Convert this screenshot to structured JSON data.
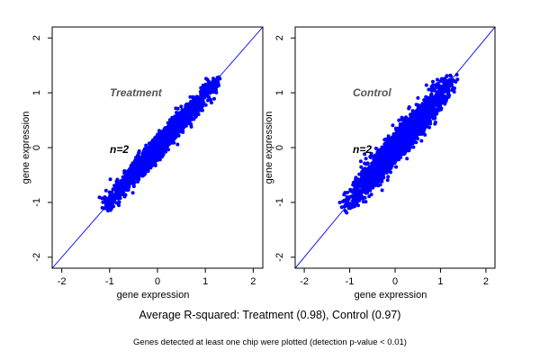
{
  "chart_data": [
    {
      "type": "scatter",
      "panel": "left",
      "annotation": "Treatment",
      "n_label": "n=2",
      "xlabel": "gene expression",
      "ylabel": "gene expression",
      "xlim": [
        -2.2,
        2.2
      ],
      "ylim": [
        -2.2,
        2.2
      ],
      "xticks": [
        -2,
        -1,
        0,
        1,
        2
      ],
      "yticks": [
        -2,
        -1,
        0,
        1,
        2
      ],
      "reference_line": {
        "slope": 1,
        "intercept": 0
      },
      "point_color": "#0000ff",
      "line_color": "#0000ff",
      "cloud": {
        "x_range": [
          -1.05,
          1.2
        ],
        "slope": 0.98,
        "spread": 0.07
      },
      "series": [
        {
          "name": "",
          "points": [
            [
              -1.0,
              -1.05
            ],
            [
              -0.8,
              -0.9
            ],
            [
              -0.5,
              -0.55
            ],
            [
              -0.2,
              -0.2
            ],
            [
              0.0,
              0.0
            ],
            [
              0.3,
              0.28
            ],
            [
              0.6,
              0.55
            ],
            [
              0.9,
              0.9
            ],
            [
              1.1,
              1.15
            ],
            [
              1.15,
              1.2
            ]
          ]
        }
      ]
    },
    {
      "type": "scatter",
      "panel": "right",
      "annotation": "Control",
      "n_label": "n=2",
      "xlabel": "gene expression",
      "ylabel": "gene expression",
      "xlim": [
        -2.2,
        2.2
      ],
      "ylim": [
        -2.2,
        2.2
      ],
      "xticks": [
        -2,
        -1,
        0,
        1,
        2
      ],
      "yticks": [
        -2,
        -1,
        0,
        1,
        2
      ],
      "reference_line": {
        "slope": 1,
        "intercept": 0
      },
      "point_color": "#0000ff",
      "line_color": "#0000ff",
      "cloud": {
        "x_range": [
          -1.05,
          1.2
        ],
        "slope": 0.97,
        "spread": 0.1
      },
      "series": [
        {
          "name": "",
          "points": [
            [
              -1.0,
              -1.1
            ],
            [
              -0.8,
              -0.85
            ],
            [
              -0.5,
              -0.5
            ],
            [
              -0.2,
              -0.25
            ],
            [
              0.0,
              0.0
            ],
            [
              0.3,
              0.35
            ],
            [
              0.6,
              0.6
            ],
            [
              0.9,
              0.95
            ],
            [
              1.1,
              1.2
            ],
            [
              1.2,
              1.2
            ]
          ]
        }
      ]
    }
  ],
  "caption": "Average R-squared: Treatment (0.98), Control (0.97)",
  "note": "Genes detected at least one chip were plotted (detection p-value < 0.01)"
}
